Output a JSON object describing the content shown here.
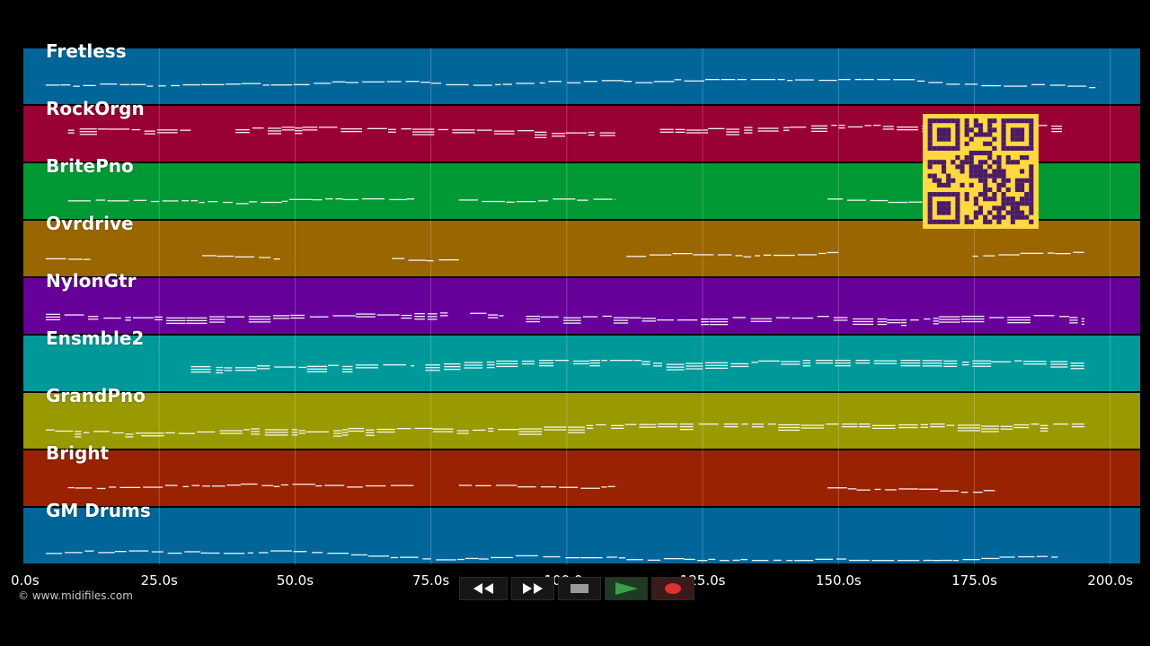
{
  "tracks": [
    {
      "name": "Fretless",
      "color": "#006699"
    },
    {
      "name": "RockOrgn",
      "color": "#990033"
    },
    {
      "name": "BritePno",
      "color": "#009933"
    },
    {
      "name": "Ovrdrive",
      "color": "#996600"
    },
    {
      "name": "NylonGtr",
      "color": "#660099"
    },
    {
      "name": "Ensmble2",
      "color": "#009999"
    },
    {
      "name": "GrandPno",
      "color": "#999900"
    },
    {
      "name": "Bright",
      "color": "#992200"
    },
    {
      "name": "GM Drums",
      "color": "#006699"
    }
  ],
  "time_axis": {
    "max_seconds": 205.5,
    "ticks": [
      {
        "value": 0,
        "label": "0.0s"
      },
      {
        "value": 25,
        "label": "25.0s"
      },
      {
        "value": 50,
        "label": "50.0s"
      },
      {
        "value": 75,
        "label": "75.0s"
      },
      {
        "value": 100,
        "label": "100.0s"
      },
      {
        "value": 125,
        "label": "125.0s"
      },
      {
        "value": 150,
        "label": "150.0s"
      },
      {
        "value": 175,
        "label": "175.0s"
      },
      {
        "value": 200,
        "label": "200.0s"
      }
    ]
  },
  "footer": {
    "copyright": "© www.midifiles.com"
  },
  "transport": [
    {
      "name": "rewind-button",
      "icon": "rewind-icon"
    },
    {
      "name": "fast-forward-button",
      "icon": "fast-forward-icon"
    },
    {
      "name": "stop-button",
      "icon": "stop-icon"
    },
    {
      "name": "play-button",
      "icon": "play-icon"
    },
    {
      "name": "record-button",
      "icon": "record-icon"
    }
  ],
  "colors": {
    "play": "#2e8b3a",
    "record": "#e03030",
    "stop": "#9a9a9a",
    "qr": "#ffd93d",
    "qr_dark": "#4a1a6a"
  },
  "qr_code": {
    "icon": "qr-code-icon"
  }
}
